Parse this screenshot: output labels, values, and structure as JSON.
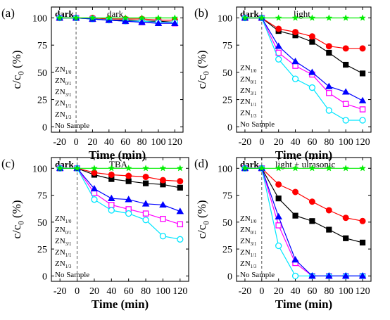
{
  "colors": {
    "ZN1/0": "#000000",
    "ZN0/1": "#ff0000",
    "ZN3/1": "#ff00ff",
    "ZN1/1": "#00e6ff",
    "ZN1/3": "#0000ff",
    "No Sample": "#00ee00"
  },
  "chart_data": [
    {
      "panel": "(a)",
      "type": "line",
      "region_labels": [
        "dark",
        "dark"
      ],
      "xlabel": "Time (min)",
      "ylabel": "c/c0 (%)",
      "xlim": [
        -30,
        130
      ],
      "ylim": [
        -5,
        110
      ],
      "xticks": [
        -20,
        0,
        20,
        40,
        60,
        80,
        100,
        120
      ],
      "yticks": [
        0,
        25,
        50,
        75,
        100
      ],
      "x": [
        -20,
        0,
        20,
        40,
        60,
        80,
        100,
        120
      ],
      "series": [
        {
          "name": "ZN1/0",
          "marker": "square",
          "values": [
            100,
            100,
            99,
            98,
            98,
            97,
            97,
            96
          ]
        },
        {
          "name": "ZN0/1",
          "marker": "circle",
          "values": [
            100,
            100,
            100,
            99,
            99,
            99,
            98,
            98
          ]
        },
        {
          "name": "ZN3/1",
          "marker": "square-open",
          "values": [
            100,
            100,
            99,
            98,
            97,
            96,
            96,
            95
          ]
        },
        {
          "name": "ZN1/1",
          "marker": "circle-open",
          "values": [
            100,
            100,
            99,
            98,
            97,
            97,
            96,
            96
          ]
        },
        {
          "name": "ZN1/3",
          "marker": "triangle",
          "values": [
            100,
            100,
            99,
            98,
            97,
            96,
            95,
            95
          ]
        },
        {
          "name": "No Sample",
          "marker": "star",
          "values": [
            100,
            100,
            100,
            100,
            100,
            100,
            100,
            100
          ]
        }
      ]
    },
    {
      "panel": "(b)",
      "type": "line",
      "region_labels": [
        "dark",
        "light"
      ],
      "xlabel": "Time (min)",
      "ylabel": "c/c0 (%)",
      "xlim": [
        -30,
        130
      ],
      "ylim": [
        -5,
        110
      ],
      "xticks": [
        -20,
        0,
        20,
        40,
        60,
        80,
        100,
        120
      ],
      "yticks": [
        0,
        25,
        50,
        75,
        100
      ],
      "x": [
        -20,
        0,
        20,
        40,
        60,
        80,
        100,
        120
      ],
      "series": [
        {
          "name": "ZN1/0",
          "marker": "square",
          "values": [
            100,
            100,
            88,
            84,
            78,
            68,
            57,
            49
          ]
        },
        {
          "name": "ZN0/1",
          "marker": "circle",
          "values": [
            100,
            100,
            90,
            87,
            83,
            74,
            72,
            72
          ]
        },
        {
          "name": "ZN3/1",
          "marker": "square-open",
          "values": [
            100,
            100,
            68,
            56,
            48,
            31,
            21,
            16
          ]
        },
        {
          "name": "ZN1/1",
          "marker": "circle-open",
          "values": [
            100,
            100,
            62,
            44,
            36,
            15,
            6,
            6
          ]
        },
        {
          "name": "ZN1/3",
          "marker": "triangle",
          "values": [
            100,
            100,
            74,
            60,
            50,
            37,
            32,
            24
          ]
        },
        {
          "name": "No Sample",
          "marker": "star",
          "values": [
            100,
            100,
            100,
            100,
            100,
            100,
            100,
            100
          ]
        }
      ]
    },
    {
      "panel": "(c)",
      "type": "line",
      "region_labels": [
        "dark",
        "TBA"
      ],
      "xlabel": "Time (min)",
      "ylabel": "c/c0 (%)",
      "xlim": [
        -30,
        130
      ],
      "ylim": [
        -5,
        110
      ],
      "xticks": [
        -20,
        0,
        20,
        40,
        60,
        80,
        100,
        120
      ],
      "yticks": [
        0,
        25,
        50,
        75,
        100
      ],
      "x": [
        -20,
        0,
        20,
        40,
        60,
        80,
        100,
        120
      ],
      "series": [
        {
          "name": "ZN1/0",
          "marker": "square",
          "values": [
            100,
            100,
            94,
            90,
            88,
            86,
            85,
            82
          ]
        },
        {
          "name": "ZN0/1",
          "marker": "circle",
          "values": [
            100,
            100,
            96,
            94,
            93,
            92,
            89,
            88
          ]
        },
        {
          "name": "ZN3/1",
          "marker": "square-open",
          "values": [
            100,
            100,
            77,
            66,
            62,
            58,
            53,
            48
          ]
        },
        {
          "name": "ZN1/1",
          "marker": "circle-open",
          "values": [
            100,
            100,
            71,
            61,
            58,
            52,
            37,
            34
          ]
        },
        {
          "name": "ZN1/3",
          "marker": "triangle",
          "values": [
            100,
            100,
            81,
            72,
            71,
            67,
            66,
            60
          ]
        },
        {
          "name": "No Sample",
          "marker": "star",
          "values": [
            100,
            100,
            100,
            100,
            100,
            100,
            100,
            100
          ]
        }
      ]
    },
    {
      "panel": "(d)",
      "type": "line",
      "region_labels": [
        "dark",
        "light + ulrasonic"
      ],
      "xlabel": "Time (min)",
      "ylabel": "c/c0 (%)",
      "xlim": [
        -30,
        130
      ],
      "ylim": [
        -5,
        110
      ],
      "xticks": [
        -20,
        0,
        20,
        40,
        60,
        80,
        100,
        120
      ],
      "yticks": [
        0,
        25,
        50,
        75,
        100
      ],
      "x": [
        -20,
        0,
        20,
        40,
        60,
        80,
        100,
        120
      ],
      "series": [
        {
          "name": "ZN1/0",
          "marker": "square",
          "values": [
            100,
            100,
            72,
            56,
            51,
            43,
            35,
            31
          ]
        },
        {
          "name": "ZN0/1",
          "marker": "circle",
          "values": [
            100,
            100,
            85,
            78,
            69,
            61,
            54,
            51
          ]
        },
        {
          "name": "ZN3/1",
          "marker": "square-open",
          "values": [
            100,
            100,
            47,
            12,
            0,
            0,
            0,
            0
          ]
        },
        {
          "name": "ZN1/1",
          "marker": "circle-open",
          "values": [
            100,
            100,
            28,
            0,
            0,
            0,
            0,
            0
          ]
        },
        {
          "name": "ZN1/3",
          "marker": "triangle",
          "values": [
            100,
            100,
            55,
            15,
            0,
            0,
            0,
            0
          ]
        },
        {
          "name": "No Sample",
          "marker": "star",
          "values": [
            100,
            100,
            100,
            100,
            100,
            100,
            100,
            100
          ]
        }
      ]
    }
  ]
}
